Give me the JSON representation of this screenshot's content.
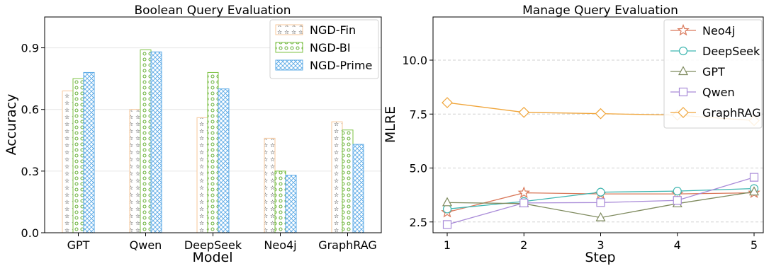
{
  "chart_data": [
    {
      "type": "bar",
      "title": "Boolean Query Evaluation",
      "xlabel": "Model",
      "ylabel": "Accuracy",
      "ylim": [
        0,
        1.05
      ],
      "yticks": [
        "0.0",
        "0.3",
        "0.6",
        "0.9"
      ],
      "grid": "y",
      "legend_position": "top-right",
      "categories": [
        "GPT",
        "Qwen",
        "DeepSeek",
        "Neo4j",
        "GraphRAG"
      ],
      "series": [
        {
          "name": "NGD-Fin",
          "color": "#f7c79a",
          "pattern": "stars",
          "values": [
            0.69,
            0.6,
            0.56,
            0.46,
            0.54
          ]
        },
        {
          "name": "NGD-BI",
          "color": "#7cc242",
          "pattern": "circles",
          "values": [
            0.75,
            0.89,
            0.78,
            0.3,
            0.5
          ]
        },
        {
          "name": "NGD-Prime",
          "color": "#5aa9e6",
          "pattern": "crosshatch",
          "values": [
            0.78,
            0.88,
            0.7,
            0.28,
            0.43
          ]
        }
      ]
    },
    {
      "type": "line",
      "title": "Manage Query Evaluation",
      "xlabel": "Step",
      "ylabel": "MLRE",
      "x": [
        1,
        2,
        3,
        4,
        5
      ],
      "xticks": [
        "1",
        "2",
        "3",
        "4",
        "5"
      ],
      "ylim": [
        2.0,
        12.0
      ],
      "yticks": [
        "2.5",
        "5.0",
        "7.5",
        "10.0"
      ],
      "grid": "y-dashed",
      "legend_position": "top-right",
      "series": [
        {
          "name": "Neo4j",
          "color": "#d9785a",
          "marker": "star",
          "values": [
            2.95,
            3.85,
            3.8,
            3.8,
            3.85
          ]
        },
        {
          "name": "DeepSeek",
          "color": "#3fb6b0",
          "marker": "circle",
          "values": [
            3.1,
            3.45,
            3.88,
            3.93,
            4.05
          ]
        },
        {
          "name": "GPT",
          "color": "#7e8a5e",
          "marker": "triangle",
          "values": [
            3.4,
            3.35,
            2.7,
            3.35,
            3.9
          ]
        },
        {
          "name": "Qwen",
          "color": "#a98bd8",
          "marker": "square",
          "values": [
            2.38,
            3.38,
            3.4,
            3.5,
            4.57
          ]
        },
        {
          "name": "GraphRAG",
          "color": "#f0a53a",
          "marker": "diamond",
          "values": [
            8.03,
            7.58,
            7.52,
            7.45,
            7.2
          ]
        }
      ]
    }
  ]
}
